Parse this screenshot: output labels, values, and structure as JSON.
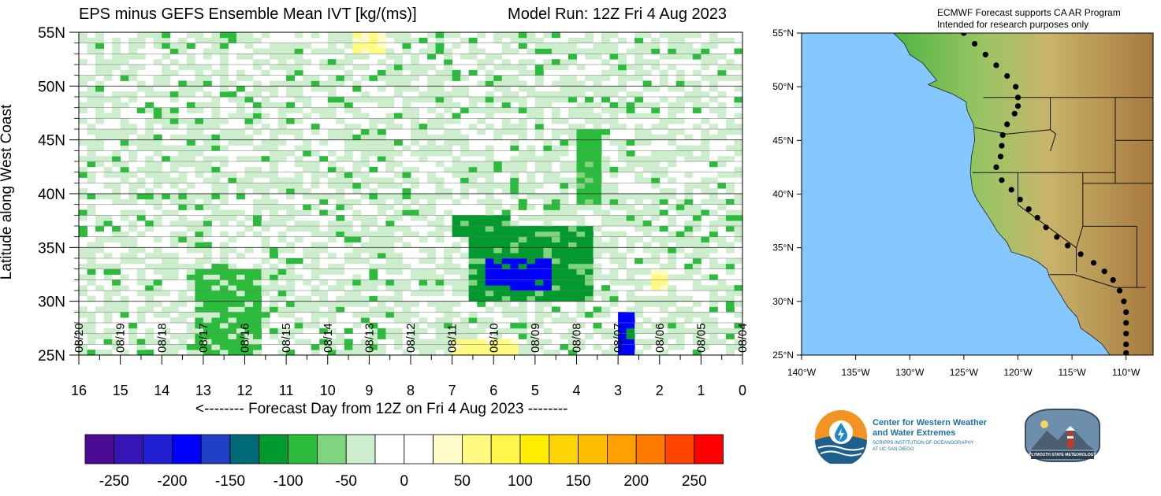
{
  "header": {
    "title": "EPS minus GEFS Ensemble Mean IVT [kg/(ms)]",
    "model_run": "Model Run: 12Z Fri 4 Aug 2023"
  },
  "map_note": {
    "line1": "ECMWF Forecast supports CA AR Program",
    "line2": "Intended for research purposes only"
  },
  "chart_data": [
    {
      "type": "heatmap",
      "title": "EPS minus GEFS Ensemble Mean IVT [kg/(ms)]",
      "xlabel": "<-------- Forecast Day from 12Z on Fri 4 Aug 2023 --------",
      "ylabel": "Latitude along West Coast",
      "x_ticks": [
        "16",
        "15",
        "14",
        "13",
        "12",
        "11",
        "10",
        "9",
        "8",
        "7",
        "6",
        "5",
        "4",
        "3",
        "2",
        "1",
        "0"
      ],
      "x_reversed": true,
      "xlim": [
        16,
        0
      ],
      "date_labels": [
        "08/20",
        "08/19",
        "08/18",
        "08/17",
        "08/16",
        "08/15",
        "08/14",
        "08/13",
        "08/12",
        "08/11",
        "08/10",
        "08/09",
        "08/08",
        "08/07",
        "08/06",
        "08/05",
        "08/04"
      ],
      "y_ticks": [
        "25N",
        "30N",
        "35N",
        "40N",
        "45N",
        "50N",
        "55N"
      ],
      "ylim": [
        25,
        55
      ],
      "grid": true,
      "regions": [
        {
          "day": [
            16,
            0
          ],
          "lat": [
            25,
            55
          ],
          "value": -30
        },
        {
          "day": [
            13.2,
            11.6
          ],
          "lat": [
            25,
            33
          ],
          "value": -80
        },
        {
          "day": [
            6.6,
            3.6
          ],
          "lat": [
            30,
            37
          ],
          "value": -120
        },
        {
          "day": [
            6.2,
            4.6
          ],
          "lat": [
            31,
            34
          ],
          "value": -180
        },
        {
          "day": [
            7.0,
            5.6
          ],
          "lat": [
            36,
            38
          ],
          "value": -110
        },
        {
          "day": [
            4.0,
            3.4
          ],
          "lat": [
            39,
            46
          ],
          "value": -100
        },
        {
          "day": [
            3.0,
            2.6
          ],
          "lat": [
            25,
            29
          ],
          "value": -180
        },
        {
          "day": [
            9.4,
            8.6
          ],
          "lat": [
            53,
            55
          ],
          "value": 60
        },
        {
          "day": [
            7.0,
            5.5
          ],
          "lat": [
            25,
            26.5
          ],
          "value": 70
        },
        {
          "day": [
            2.2,
            1.8
          ],
          "lat": [
            31,
            33
          ],
          "value": 60
        }
      ]
    },
    {
      "type": "map",
      "lon_ticks": [
        "140°W",
        "135°W",
        "130°W",
        "125°W",
        "120°W",
        "115°W",
        "110°W"
      ],
      "lon_range": [
        -140,
        -107.5
      ],
      "lat_ticks": [
        "25°N",
        "30°N",
        "35°N",
        "40°N",
        "45°N",
        "50°N",
        "55°N"
      ],
      "lat_range": [
        25,
        55
      ],
      "transect": [
        [
          -125.0,
          55.0
        ],
        [
          -124.0,
          54.0
        ],
        [
          -123.0,
          53.0
        ],
        [
          -122.0,
          52.0
        ],
        [
          -121.0,
          51.0
        ],
        [
          -120.2,
          50.0
        ],
        [
          -120.0,
          49.0
        ],
        [
          -120.0,
          48.2
        ],
        [
          -120.3,
          47.5
        ],
        [
          -121.0,
          46.5
        ],
        [
          -121.4,
          45.5
        ],
        [
          -121.5,
          44.5
        ],
        [
          -121.6,
          43.5
        ],
        [
          -122.0,
          42.5
        ],
        [
          -121.5,
          41.3
        ],
        [
          -120.6,
          40.4
        ],
        [
          -119.8,
          39.5
        ],
        [
          -119.0,
          38.6
        ],
        [
          -118.2,
          37.8
        ],
        [
          -117.4,
          36.9
        ],
        [
          -116.4,
          36.0
        ],
        [
          -115.4,
          35.2
        ],
        [
          -114.2,
          34.4
        ],
        [
          -113.0,
          33.6
        ],
        [
          -112.0,
          32.8
        ],
        [
          -111.2,
          32.0
        ],
        [
          -110.6,
          31.0
        ],
        [
          -110.2,
          30.0
        ],
        [
          -110.0,
          29.0
        ],
        [
          -110.0,
          28.0
        ],
        [
          -110.0,
          27.0
        ],
        [
          -110.0,
          26.0
        ],
        [
          -110.0,
          25.2
        ]
      ]
    }
  ],
  "colorbar": {
    "labels": [
      "-250",
      "-200",
      "-150",
      "-100",
      "-50",
      "0",
      "50",
      "100",
      "150",
      "200",
      "250"
    ],
    "colors": [
      "#4b0c93",
      "#3515b5",
      "#2020d2",
      "#0000ff",
      "#1f3fc4",
      "#006b76",
      "#009a2f",
      "#2cbc3c",
      "#7fd57f",
      "#cdeecd",
      "#ffffff",
      "#ffffff",
      "#fffcca",
      "#fffa80",
      "#fff64a",
      "#ffee00",
      "#ffd400",
      "#ffbe00",
      "#ff9f00",
      "#ff7b00",
      "#ff4500",
      "#ff0000"
    ]
  },
  "logos": {
    "cw3e_line1": "Center for Western Weather",
    "cw3e_line2": "and Water Extremes",
    "cw3e_line3": "SCRIPPS INSTITUTION OF OCEANOGRAPHY",
    "cw3e_line4": "AT UC SAN DIEGO",
    "psu": "PLYMOUTH STATE METEOROLOGY"
  }
}
